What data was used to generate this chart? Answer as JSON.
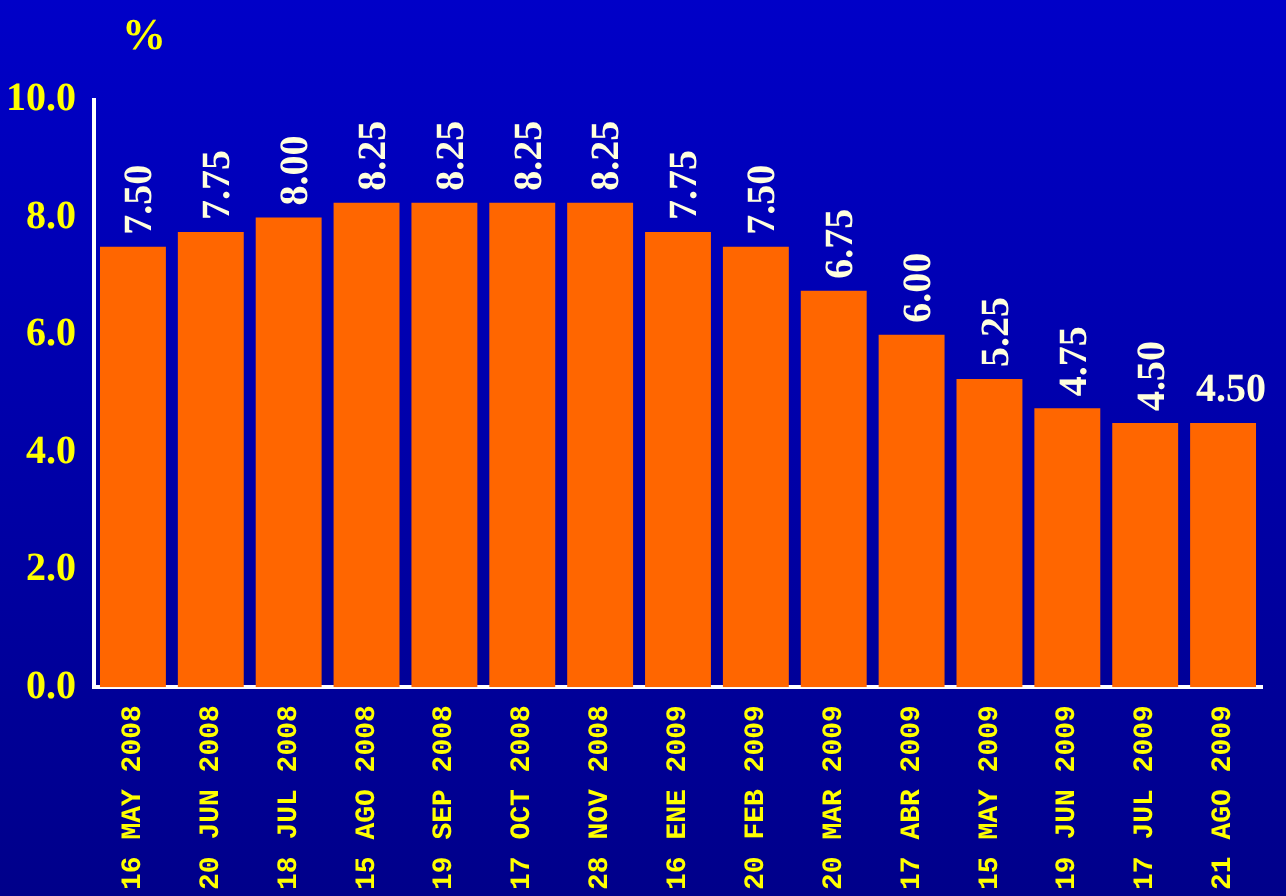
{
  "chart_data": {
    "type": "bar",
    "ylabel": "%",
    "categories": [
      "16 MAY 2008",
      "20 JUN 2008",
      "18 JUL 2008",
      "15 AGO 2008",
      "19 SEP 2008",
      "17 OCT 2008",
      "28 NOV 2008",
      "16 ENE 2009",
      "20 FEB 2009",
      "20 MAR 2009",
      "17 ABR 2009",
      "15 MAY 2009",
      "19 JUN 2009",
      "17 JUL 2009",
      "21 AGO 2009"
    ],
    "values": [
      7.5,
      7.75,
      8.0,
      8.25,
      8.25,
      8.25,
      8.25,
      7.75,
      7.5,
      6.75,
      6.0,
      5.25,
      4.75,
      4.5,
      4.5
    ],
    "value_labels": [
      "7.50",
      "7.75",
      "8.00",
      "8.25",
      "8.25",
      "8.25",
      "8.25",
      "7.75",
      "7.50",
      "6.75",
      "6.00",
      "5.25",
      "4.75",
      "4.50",
      "4.50"
    ],
    "color": "#ff6600",
    "ylim": [
      0,
      10
    ],
    "yticks": [
      {
        "value": 0,
        "label": "0.0"
      },
      {
        "value": 2,
        "label": "2.0"
      },
      {
        "value": 4,
        "label": "4.0"
      },
      {
        "value": 6,
        "label": "6.0"
      },
      {
        "value": 8,
        "label": "8.0"
      },
      {
        "value": 10,
        "label": "10.0"
      }
    ],
    "grid": false,
    "legend": false
  }
}
